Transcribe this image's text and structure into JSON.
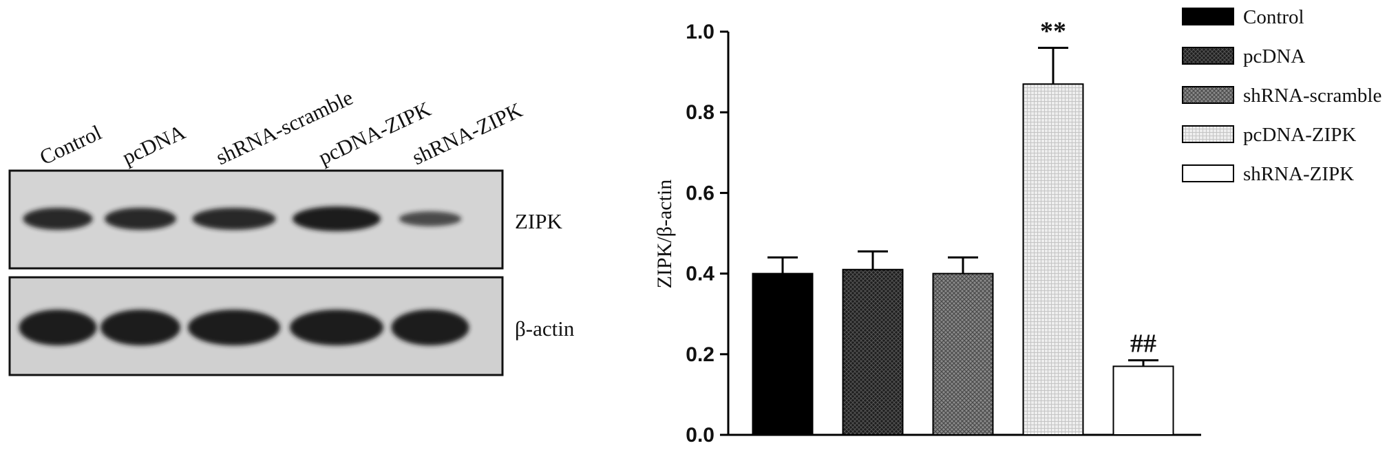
{
  "blot": {
    "lanes": [
      "Control",
      "pcDNA",
      "shRNA-scramble",
      "pcDNA-ZIPK",
      "shRNA-ZIPK"
    ],
    "row_labels": [
      "ZIPK",
      "β-actin"
    ],
    "band_intensity": {
      "ZIPK": [
        0.85,
        0.85,
        0.85,
        1.0,
        0.45
      ],
      "β-actin": [
        1.0,
        1.0,
        1.0,
        1.0,
        1.0
      ]
    }
  },
  "chart_data": {
    "type": "bar",
    "categories": [
      "Control",
      "pcDNA",
      "shRNA-scramble",
      "pcDNA-ZIPK",
      "shRNA-ZIPK"
    ],
    "values": [
      0.4,
      0.41,
      0.4,
      0.87,
      0.17
    ],
    "errors": [
      0.04,
      0.045,
      0.04,
      0.09,
      0.015
    ],
    "annotations": [
      "",
      "",
      "",
      "**",
      "##"
    ],
    "xlabel": "",
    "ylabel": "ZIPK/β-actin",
    "ylim": [
      0,
      1.0
    ],
    "yticks": [
      "0.0",
      "0.2",
      "0.4",
      "0.6",
      "0.8",
      "1.0"
    ],
    "legend": {
      "placement": "top-right",
      "entries": [
        "Control",
        "pcDNA",
        "shRNA-scramble",
        "pcDNA-ZIPK",
        "shRNA-ZIPK"
      ]
    },
    "fills": [
      "solid-black",
      "dark-crosshatch",
      "medium-crosshatch",
      "light-dotted",
      "white"
    ],
    "grid": false
  }
}
